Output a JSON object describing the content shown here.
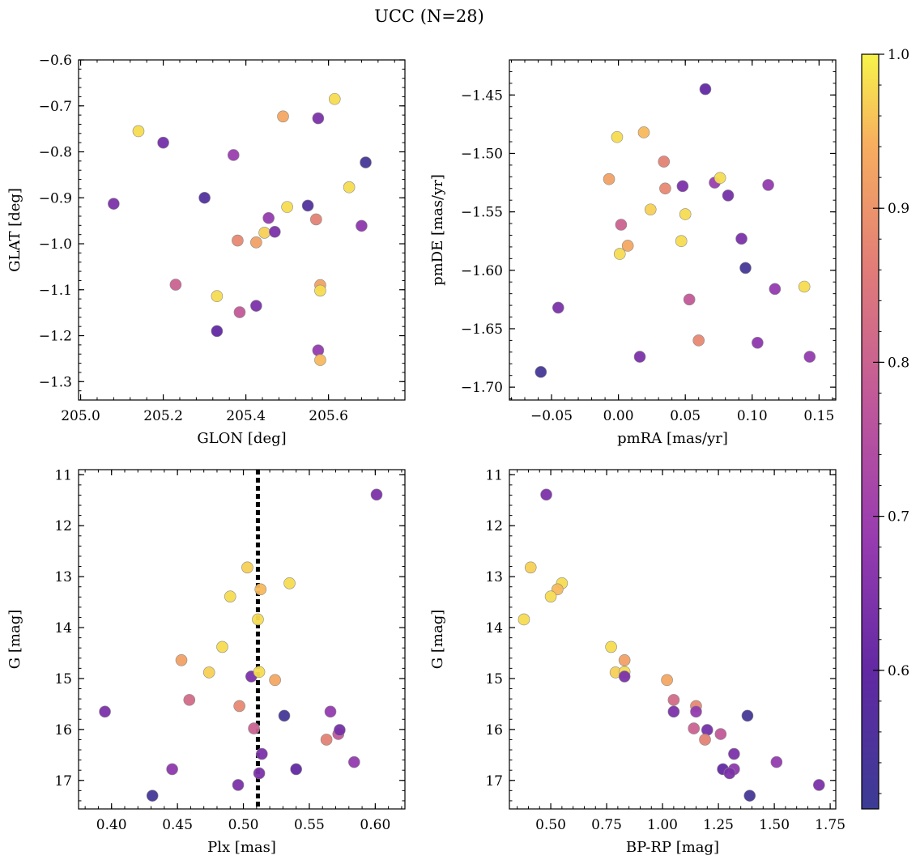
{
  "title": "UCC (N=28)",
  "chart_data": [
    {
      "type": "scatter",
      "name": "glon-glat",
      "xlabel": "GLON [deg]",
      "ylabel": "GLAT [deg]",
      "xlim": [
        204.995,
        205.785
      ],
      "ylim": [
        -1.34,
        -0.6
      ],
      "y_inverted": false,
      "x_ticks": [
        205.0,
        205.2,
        205.4,
        205.6
      ],
      "x_tick_labels": [
        "205.0",
        "205.2",
        "205.4",
        "205.6"
      ],
      "y_ticks": [
        -0.6,
        -0.7,
        -0.8,
        -0.9,
        -1.0,
        -1.1,
        -1.2,
        -1.3
      ],
      "y_tick_labels": [
        "−0.6",
        "−0.7",
        "−0.8",
        "−0.9",
        "−1.0",
        "−1.1",
        "−1.2",
        "−1.3"
      ],
      "points": [
        {
          "x": 205.08,
          "y": -0.913,
          "c": 0.64
        },
        {
          "x": 205.14,
          "y": -0.755,
          "c": 0.98
        },
        {
          "x": 205.2,
          "y": -0.78,
          "c": 0.63
        },
        {
          "x": 205.23,
          "y": -1.089,
          "c": 0.8
        },
        {
          "x": 205.3,
          "y": -0.9,
          "c": 0.56
        },
        {
          "x": 205.33,
          "y": -1.114,
          "c": 0.98
        },
        {
          "x": 205.33,
          "y": -1.19,
          "c": 0.6
        },
        {
          "x": 205.37,
          "y": -0.807,
          "c": 0.69
        },
        {
          "x": 205.38,
          "y": -0.993,
          "c": 0.88
        },
        {
          "x": 205.385,
          "y": -1.149,
          "c": 0.78
        },
        {
          "x": 205.425,
          "y": -0.997,
          "c": 0.92
        },
        {
          "x": 205.425,
          "y": -1.135,
          "c": 0.64
        },
        {
          "x": 205.445,
          "y": -0.976,
          "c": 0.97
        },
        {
          "x": 205.455,
          "y": -0.944,
          "c": 0.68
        },
        {
          "x": 205.47,
          "y": -0.974,
          "c": 0.64
        },
        {
          "x": 205.49,
          "y": -0.723,
          "c": 0.93
        },
        {
          "x": 205.5,
          "y": -0.92,
          "c": 0.98
        },
        {
          "x": 205.55,
          "y": -0.917,
          "c": 0.56
        },
        {
          "x": 205.57,
          "y": -0.947,
          "c": 0.87
        },
        {
          "x": 205.575,
          "y": -0.727,
          "c": 0.64
        },
        {
          "x": 205.575,
          "y": -1.232,
          "c": 0.68
        },
        {
          "x": 205.58,
          "y": -1.09,
          "c": 0.92
        },
        {
          "x": 205.58,
          "y": -1.102,
          "c": 0.98
        },
        {
          "x": 205.58,
          "y": -1.253,
          "c": 0.95
        },
        {
          "x": 205.615,
          "y": -0.685,
          "c": 0.98
        },
        {
          "x": 205.65,
          "y": -0.877,
          "c": 0.98
        },
        {
          "x": 205.68,
          "y": -0.961,
          "c": 0.67
        },
        {
          "x": 205.69,
          "y": -0.823,
          "c": 0.53
        }
      ]
    },
    {
      "type": "scatter",
      "name": "pmra-pmde",
      "xlabel": "pmRA [mas/yr]",
      "ylabel": "pmDE [mas/yr]",
      "xlim": [
        -0.0815,
        0.1625
      ],
      "ylim": [
        -1.711,
        -1.42
      ],
      "y_inverted": false,
      "x_ticks": [
        -0.05,
        0.0,
        0.05,
        0.1,
        0.15
      ],
      "x_tick_labels": [
        "−0.05",
        "0.00",
        "0.05",
        "0.10",
        "0.15"
      ],
      "y_ticks": [
        -1.45,
        -1.5,
        -1.55,
        -1.6,
        -1.65,
        -1.7
      ],
      "y_tick_labels": [
        "−1.45",
        "−1.50",
        "−1.55",
        "−1.60",
        "−1.65",
        "−1.70"
      ],
      "points": [
        {
          "x": -0.058,
          "y": -1.687,
          "c": 0.53
        },
        {
          "x": -0.045,
          "y": -1.632,
          "c": 0.64
        },
        {
          "x": -0.007,
          "y": -1.522,
          "c": 0.92
        },
        {
          "x": -0.001,
          "y": -1.486,
          "c": 0.98
        },
        {
          "x": 0.001,
          "y": -1.586,
          "c": 0.98
        },
        {
          "x": 0.002,
          "y": -1.561,
          "c": 0.8
        },
        {
          "x": 0.007,
          "y": -1.579,
          "c": 0.93
        },
        {
          "x": 0.016,
          "y": -1.674,
          "c": 0.64
        },
        {
          "x": 0.019,
          "y": -1.482,
          "c": 0.95
        },
        {
          "x": 0.024,
          "y": -1.548,
          "c": 0.97
        },
        {
          "x": 0.034,
          "y": -1.507,
          "c": 0.87
        },
        {
          "x": 0.035,
          "y": -1.53,
          "c": 0.88
        },
        {
          "x": 0.047,
          "y": -1.575,
          "c": 0.98
        },
        {
          "x": 0.048,
          "y": -1.528,
          "c": 0.64
        },
        {
          "x": 0.05,
          "y": -1.552,
          "c": 0.98
        },
        {
          "x": 0.053,
          "y": -1.625,
          "c": 0.78
        },
        {
          "x": 0.06,
          "y": -1.66,
          "c": 0.88
        },
        {
          "x": 0.065,
          "y": -1.445,
          "c": 0.6
        },
        {
          "x": 0.072,
          "y": -1.525,
          "c": 0.69
        },
        {
          "x": 0.076,
          "y": -1.521,
          "c": 0.98
        },
        {
          "x": 0.082,
          "y": -1.536,
          "c": 0.63
        },
        {
          "x": 0.092,
          "y": -1.573,
          "c": 0.64
        },
        {
          "x": 0.095,
          "y": -1.598,
          "c": 0.53
        },
        {
          "x": 0.104,
          "y": -1.662,
          "c": 0.67
        },
        {
          "x": 0.112,
          "y": -1.527,
          "c": 0.68
        },
        {
          "x": 0.117,
          "y": -1.616,
          "c": 0.68
        },
        {
          "x": 0.139,
          "y": -1.614,
          "c": 0.98
        },
        {
          "x": 0.143,
          "y": -1.674,
          "c": 0.68
        }
      ]
    },
    {
      "type": "scatter",
      "name": "plx-g",
      "xlabel": "Plx [mas]",
      "ylabel": "G [mag]",
      "xlim": [
        0.375,
        0.6225
      ],
      "ylim": [
        17.56,
        10.9
      ],
      "y_inverted": true,
      "x_ticks": [
        0.4,
        0.45,
        0.5,
        0.55,
        0.6
      ],
      "x_tick_labels": [
        "0.40",
        "0.45",
        "0.50",
        "0.55",
        "0.60"
      ],
      "y_ticks": [
        11,
        12,
        13,
        14,
        15,
        16,
        17
      ],
      "y_tick_labels": [
        "11",
        "12",
        "13",
        "14",
        "15",
        "16",
        "17"
      ],
      "vline": 0.511,
      "points": [
        {
          "x": 0.395,
          "y": 15.65,
          "c": 0.64
        },
        {
          "x": 0.431,
          "y": 17.3,
          "c": 0.53
        },
        {
          "x": 0.446,
          "y": 16.78,
          "c": 0.67
        },
        {
          "x": 0.453,
          "y": 14.64,
          "c": 0.92
        },
        {
          "x": 0.459,
          "y": 15.42,
          "c": 0.82
        },
        {
          "x": 0.474,
          "y": 14.88,
          "c": 0.97
        },
        {
          "x": 0.484,
          "y": 14.38,
          "c": 0.98
        },
        {
          "x": 0.49,
          "y": 13.39,
          "c": 0.98
        },
        {
          "x": 0.496,
          "y": 17.09,
          "c": 0.64
        },
        {
          "x": 0.497,
          "y": 15.54,
          "c": 0.88
        },
        {
          "x": 0.503,
          "y": 12.82,
          "c": 0.97
        },
        {
          "x": 0.506,
          "y": 14.96,
          "c": 0.64
        },
        {
          "x": 0.508,
          "y": 15.98,
          "c": 0.8
        },
        {
          "x": 0.511,
          "y": 13.84,
          "c": 0.98
        },
        {
          "x": 0.512,
          "y": 14.87,
          "c": 0.98
        },
        {
          "x": 0.512,
          "y": 16.86,
          "c": 0.64
        },
        {
          "x": 0.513,
          "y": 13.25,
          "c": 0.95
        },
        {
          "x": 0.514,
          "y": 16.48,
          "c": 0.64
        },
        {
          "x": 0.524,
          "y": 15.03,
          "c": 0.93
        },
        {
          "x": 0.531,
          "y": 15.73,
          "c": 0.53
        },
        {
          "x": 0.535,
          "y": 13.13,
          "c": 0.98
        },
        {
          "x": 0.54,
          "y": 16.78,
          "c": 0.6
        },
        {
          "x": 0.563,
          "y": 16.2,
          "c": 0.87
        },
        {
          "x": 0.566,
          "y": 15.65,
          "c": 0.68
        },
        {
          "x": 0.572,
          "y": 16.09,
          "c": 0.78
        },
        {
          "x": 0.573,
          "y": 16.01,
          "c": 0.63
        },
        {
          "x": 0.584,
          "y": 16.64,
          "c": 0.68
        },
        {
          "x": 0.601,
          "y": 11.39,
          "c": 0.64
        }
      ]
    },
    {
      "type": "scatter",
      "name": "bprp-g",
      "xlabel": "BP-RP [mag]",
      "ylabel": "G [mag]",
      "xlim": [
        0.315,
        1.775
      ],
      "ylim": [
        17.56,
        10.9
      ],
      "y_inverted": true,
      "x_ticks": [
        0.5,
        0.75,
        1.0,
        1.25,
        1.5,
        1.75
      ],
      "x_tick_labels": [
        "0.50",
        "0.75",
        "1.00",
        "1.25",
        "1.50",
        "1.75"
      ],
      "y_ticks": [
        11,
        12,
        13,
        14,
        15,
        16,
        17
      ],
      "y_tick_labels": [
        "11",
        "12",
        "13",
        "14",
        "15",
        "16",
        "17"
      ],
      "points": [
        {
          "x": 0.48,
          "y": 11.39,
          "c": 0.64
        },
        {
          "x": 0.41,
          "y": 12.82,
          "c": 0.97
        },
        {
          "x": 0.55,
          "y": 13.13,
          "c": 0.98
        },
        {
          "x": 0.53,
          "y": 13.25,
          "c": 0.95
        },
        {
          "x": 0.5,
          "y": 13.39,
          "c": 0.98
        },
        {
          "x": 0.38,
          "y": 13.84,
          "c": 0.98
        },
        {
          "x": 0.77,
          "y": 14.38,
          "c": 0.98
        },
        {
          "x": 0.83,
          "y": 14.64,
          "c": 0.92
        },
        {
          "x": 0.79,
          "y": 14.88,
          "c": 0.97
        },
        {
          "x": 0.83,
          "y": 14.87,
          "c": 0.98
        },
        {
          "x": 0.83,
          "y": 14.96,
          "c": 0.64
        },
        {
          "x": 1.02,
          "y": 15.03,
          "c": 0.93
        },
        {
          "x": 1.05,
          "y": 15.42,
          "c": 0.82
        },
        {
          "x": 1.15,
          "y": 15.54,
          "c": 0.88
        },
        {
          "x": 1.05,
          "y": 15.65,
          "c": 0.64
        },
        {
          "x": 1.15,
          "y": 15.65,
          "c": 0.68
        },
        {
          "x": 1.38,
          "y": 15.73,
          "c": 0.53
        },
        {
          "x": 1.14,
          "y": 15.98,
          "c": 0.8
        },
        {
          "x": 1.2,
          "y": 16.01,
          "c": 0.63
        },
        {
          "x": 1.26,
          "y": 16.09,
          "c": 0.78
        },
        {
          "x": 1.19,
          "y": 16.2,
          "c": 0.87
        },
        {
          "x": 1.32,
          "y": 16.48,
          "c": 0.64
        },
        {
          "x": 1.51,
          "y": 16.64,
          "c": 0.68
        },
        {
          "x": 1.27,
          "y": 16.78,
          "c": 0.6
        },
        {
          "x": 1.32,
          "y": 16.78,
          "c": 0.67
        },
        {
          "x": 1.3,
          "y": 16.86,
          "c": 0.64
        },
        {
          "x": 1.7,
          "y": 17.09,
          "c": 0.64
        },
        {
          "x": 1.39,
          "y": 17.3,
          "c": 0.53
        }
      ]
    }
  ],
  "colorbar": {
    "colormap": "plasma",
    "range": [
      0.51,
      1.0
    ],
    "ticks": [
      1.0,
      0.9,
      0.8,
      0.7,
      0.6
    ],
    "tick_labels": [
      "1.0",
      "0.9",
      "0.8",
      "0.7",
      "0.6"
    ]
  }
}
